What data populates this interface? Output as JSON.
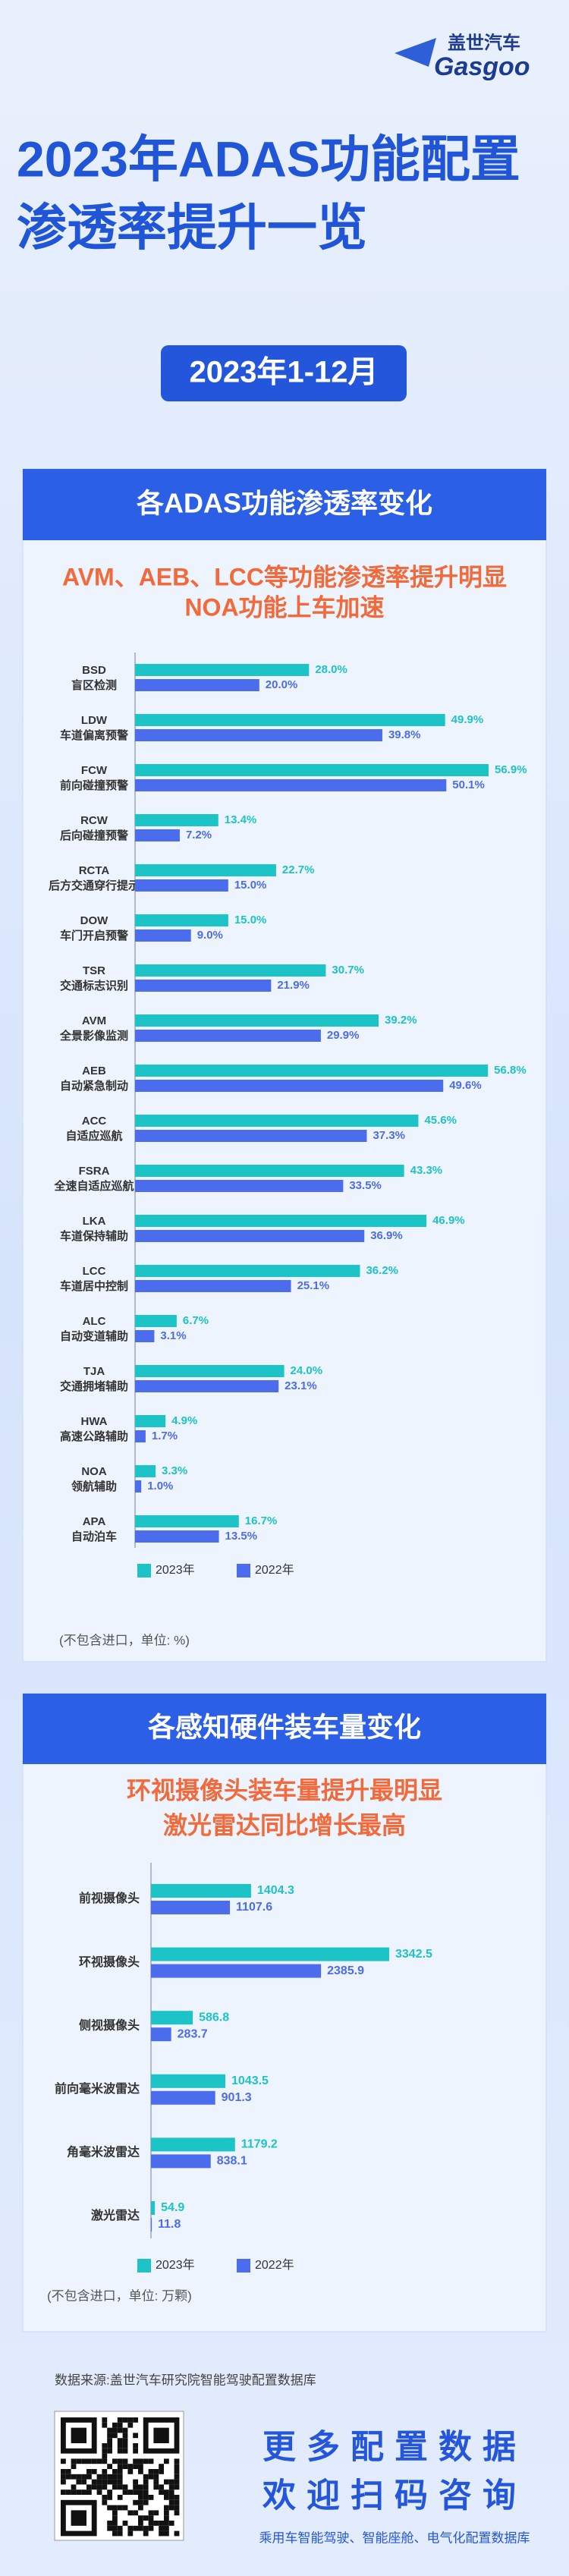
{
  "header": {
    "logo_cn": "盖世汽车",
    "logo_en": "Gasgoo",
    "title_lines": [
      "2023年ADAS功能配置",
      "渗透率提升一览"
    ],
    "date": "2023年1-12月"
  },
  "sections": [
    {
      "heading": "各ADAS功能渗透率变化",
      "subtitle": [
        "AVM、AEB、LCC等功能渗透率提升明显",
        "NOA功能上车加速"
      ],
      "note": "(不包含进口，单位: %)"
    },
    {
      "heading": "各感知硬件装车量变化",
      "subtitle": [
        "环视摄像头装车量提升最明显",
        "激光雷达同比增长最高"
      ],
      "note": "(不包含进口，单位: 万颗)"
    }
  ],
  "chart_data": [
    {
      "type": "bar",
      "orientation": "horizontal",
      "categories": [
        [
          "BSD",
          "盲区检测"
        ],
        [
          "LDW",
          "车道偏离预警"
        ],
        [
          "FCW",
          "前向碰撞预警"
        ],
        [
          "RCW",
          "后向碰撞预警"
        ],
        [
          "RCTA",
          "后方交通穿行提示"
        ],
        [
          "DOW",
          "车门开启预警"
        ],
        [
          "TSR",
          "交通标志识别"
        ],
        [
          "AVM",
          "全景影像监测"
        ],
        [
          "AEB",
          "自动紧急制动"
        ],
        [
          "ACC",
          "自适应巡航"
        ],
        [
          "FSRA",
          "全速自适应巡航"
        ],
        [
          "LKA",
          "车道保持辅助"
        ],
        [
          "LCC",
          "车道居中控制"
        ],
        [
          "ALC",
          "自动变道辅助"
        ],
        [
          "TJA",
          "交通拥堵辅助"
        ],
        [
          "HWA",
          "高速公路辅助"
        ],
        [
          "NOA",
          "领航辅助"
        ],
        [
          "APA",
          "自动泊车"
        ]
      ],
      "series": [
        {
          "name": "2023年",
          "color": "#1cc3c7",
          "values": [
            28.0,
            49.9,
            56.9,
            13.4,
            22.7,
            15.0,
            30.7,
            39.2,
            56.8,
            45.6,
            43.3,
            46.9,
            36.2,
            6.7,
            24.0,
            4.9,
            3.3,
            16.7
          ],
          "value_labels": [
            "28.0%",
            "49.9%",
            "56.9%",
            "13.4%",
            "22.7%",
            "15.0%",
            "30.7%",
            "39.2%",
            "56.8%",
            "45.6%",
            "43.3%",
            "46.9%",
            "36.2%",
            "6.7%",
            "24.0%",
            "4.9%",
            "3.3%",
            "16.7%"
          ]
        },
        {
          "name": "2022年",
          "color": "#4b6cec",
          "values": [
            20.0,
            39.8,
            50.1,
            7.2,
            15.0,
            9.0,
            21.9,
            29.9,
            49.6,
            37.3,
            33.5,
            36.9,
            25.1,
            3.1,
            23.1,
            1.7,
            1.0,
            13.5
          ],
          "value_labels": [
            "20.0%",
            "39.8%",
            "50.1%",
            "7.2%",
            "15.0%",
            "9.0%",
            "21.9%",
            "29.9%",
            "49.6%",
            "37.3%",
            "33.5%",
            "36.9%",
            "25.1%",
            "3.1%",
            "23.1%",
            "1.7%",
            "1.0%",
            "13.5%"
          ]
        }
      ]
    },
    {
      "type": "bar",
      "orientation": "horizontal",
      "categories": [
        "前视摄像头",
        "环视摄像头",
        "侧视摄像头",
        "前向毫米波雷达",
        "角毫米波雷达",
        "激光雷达"
      ],
      "series": [
        {
          "name": "2023年",
          "color": "#1cc3c7",
          "values": [
            1404.3,
            3342.5,
            586.8,
            1043.5,
            1179.2,
            54.9
          ]
        },
        {
          "name": "2022年",
          "color": "#4b6cec",
          "values": [
            1107.6,
            2385.9,
            283.7,
            901.3,
            838.1,
            11.8
          ]
        }
      ]
    }
  ],
  "footer": {
    "source": "数据来源:盖世汽车研究院智能驾驶配置数据库",
    "slogan": [
      "更多配置数据",
      "欢迎扫码咨询"
    ],
    "caption": "乘用车智能驾驶、智能座舱、电气化配置数据库"
  }
}
